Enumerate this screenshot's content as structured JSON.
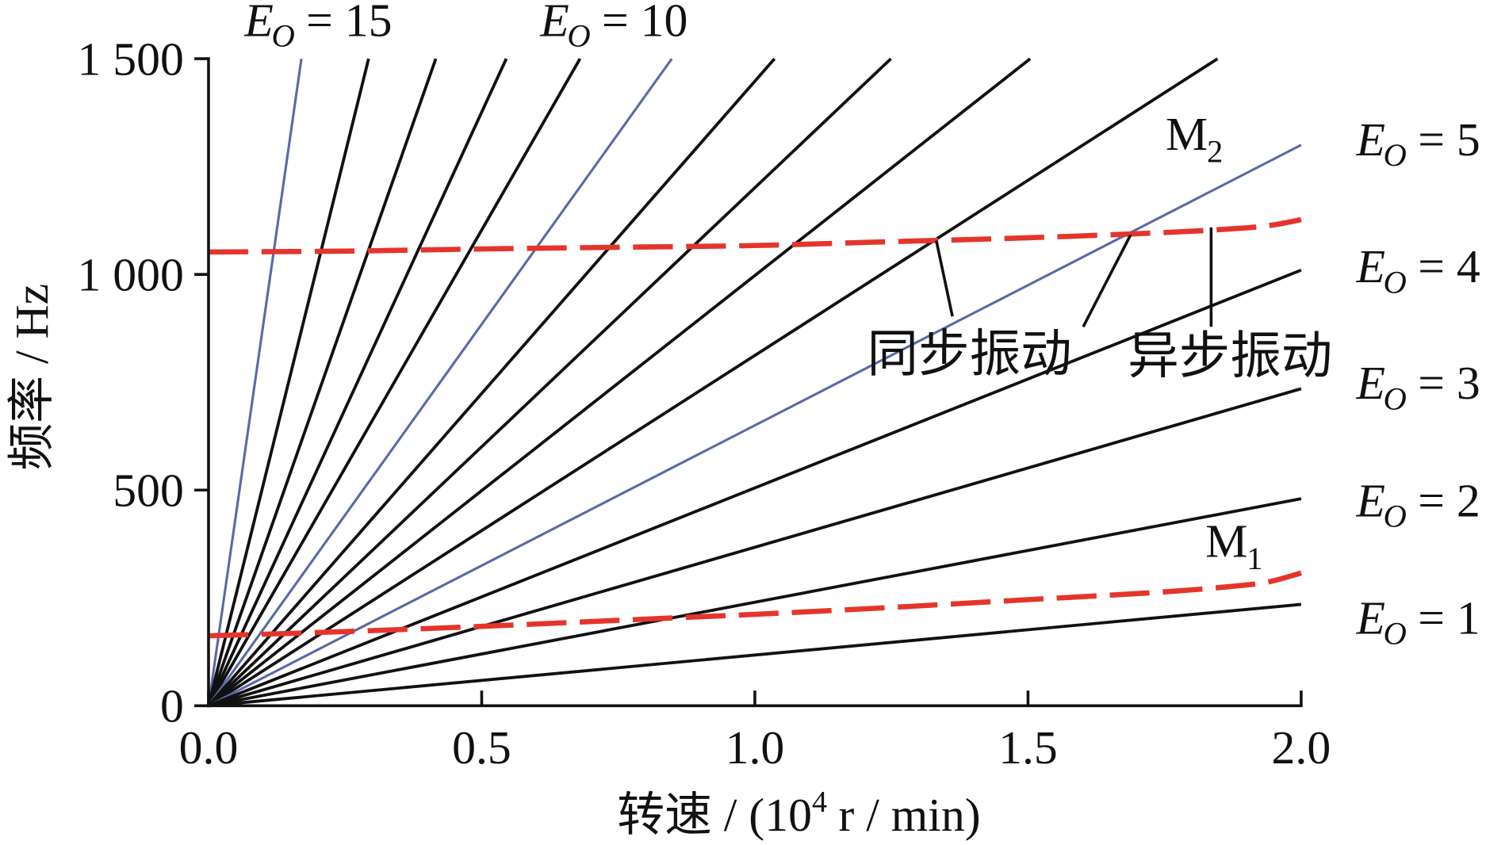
{
  "chart_data": {
    "type": "line",
    "title": "",
    "xlabel": {
      "text": "转速 / (10",
      "sup": "4",
      "after": "r / min)"
    },
    "ylabel": "频率 / Hz",
    "xlim": [
      0,
      2.0
    ],
    "ylim": [
      0,
      1500
    ],
    "xtick_values": [
      0,
      0.5,
      1.0,
      1.5,
      2.0
    ],
    "xtick_labels": [
      "0.0",
      "0.5",
      "1.0",
      "1.5",
      "2.0"
    ],
    "ytick_values": [
      0,
      500,
      1000,
      1500
    ],
    "ytick_labels": [
      "0",
      "500",
      "1 000",
      "1 500"
    ],
    "grid": false,
    "legend": "none",
    "order_lines": [
      {
        "x": [
          0,
          0.17
        ],
        "y": [
          0,
          1500
        ],
        "color": "#5b69a7"
      },
      {
        "x": [
          0,
          0.293
        ],
        "y": [
          0,
          1500
        ],
        "color": "#111111"
      },
      {
        "x": [
          0,
          0.416
        ],
        "y": [
          0,
          1500
        ],
        "color": "#111111"
      },
      {
        "x": [
          0,
          0.545
        ],
        "y": [
          0,
          1500
        ],
        "color": "#111111"
      },
      {
        "x": [
          0,
          0.68
        ],
        "y": [
          0,
          1500
        ],
        "color": "#111111"
      },
      {
        "x": [
          0,
          0.848
        ],
        "y": [
          0,
          1500
        ],
        "color": "#5b69a7"
      },
      {
        "x": [
          0,
          1.036
        ],
        "y": [
          0,
          1500
        ],
        "color": "#111111"
      },
      {
        "x": [
          0,
          1.249
        ],
        "y": [
          0,
          1500
        ],
        "color": "#111111"
      },
      {
        "x": [
          0,
          1.504
        ],
        "y": [
          0,
          1500
        ],
        "color": "#111111"
      },
      {
        "x": [
          0,
          1.847
        ],
        "y": [
          0,
          1500
        ],
        "color": "#111111"
      },
      {
        "x": [
          0,
          2.0
        ],
        "y": [
          0,
          1300
        ],
        "color": "#5b69a7"
      },
      {
        "x": [
          0,
          2.0
        ],
        "y": [
          0,
          1010
        ],
        "color": "#111111"
      },
      {
        "x": [
          0,
          2.0
        ],
        "y": [
          0,
          735
        ],
        "color": "#111111"
      },
      {
        "x": [
          0,
          2.0
        ],
        "y": [
          0,
          480
        ],
        "color": "#111111"
      },
      {
        "x": [
          0,
          2.0
        ],
        "y": [
          0,
          235
        ],
        "color": "#111111"
      }
    ],
    "mode_curves": [
      {
        "label": "M",
        "label_sub": "1",
        "color": "#e4352c",
        "style": "dashed",
        "x": [
          0,
          0.25,
          0.5,
          0.75,
          1.0,
          1.25,
          1.5,
          1.75,
          1.9,
          1.95,
          2.0
        ],
        "y": [
          162,
          172,
          184,
          198,
          212,
          228,
          246,
          264,
          280,
          290,
          308
        ]
      },
      {
        "label": "M",
        "label_sub": "2",
        "color": "#e4352c",
        "style": "dashed",
        "x": [
          0,
          0.25,
          0.5,
          0.75,
          1.0,
          1.25,
          1.5,
          1.75,
          1.9,
          1.95,
          2.0
        ],
        "y": [
          1052,
          1054,
          1059,
          1063,
          1067,
          1076,
          1085,
          1097,
          1108,
          1115,
          1127
        ]
      }
    ],
    "eo_labels": [
      {
        "main": "E",
        "sub": "O",
        "rest": "= 15"
      },
      {
        "main": "E",
        "sub": "O",
        "rest": "= 10"
      },
      {
        "main": "E",
        "sub": "O",
        "rest": "= 5"
      },
      {
        "main": "E",
        "sub": "O",
        "rest": "= 4"
      },
      {
        "main": "E",
        "sub": "O",
        "rest": "= 3"
      },
      {
        "main": "E",
        "sub": "O",
        "rest": "= 2"
      },
      {
        "main": "E",
        "sub": "O",
        "rest": "= 1"
      }
    ],
    "annotations": {
      "synchronous": "同步振动",
      "asynchronous": "异步振动"
    }
  }
}
